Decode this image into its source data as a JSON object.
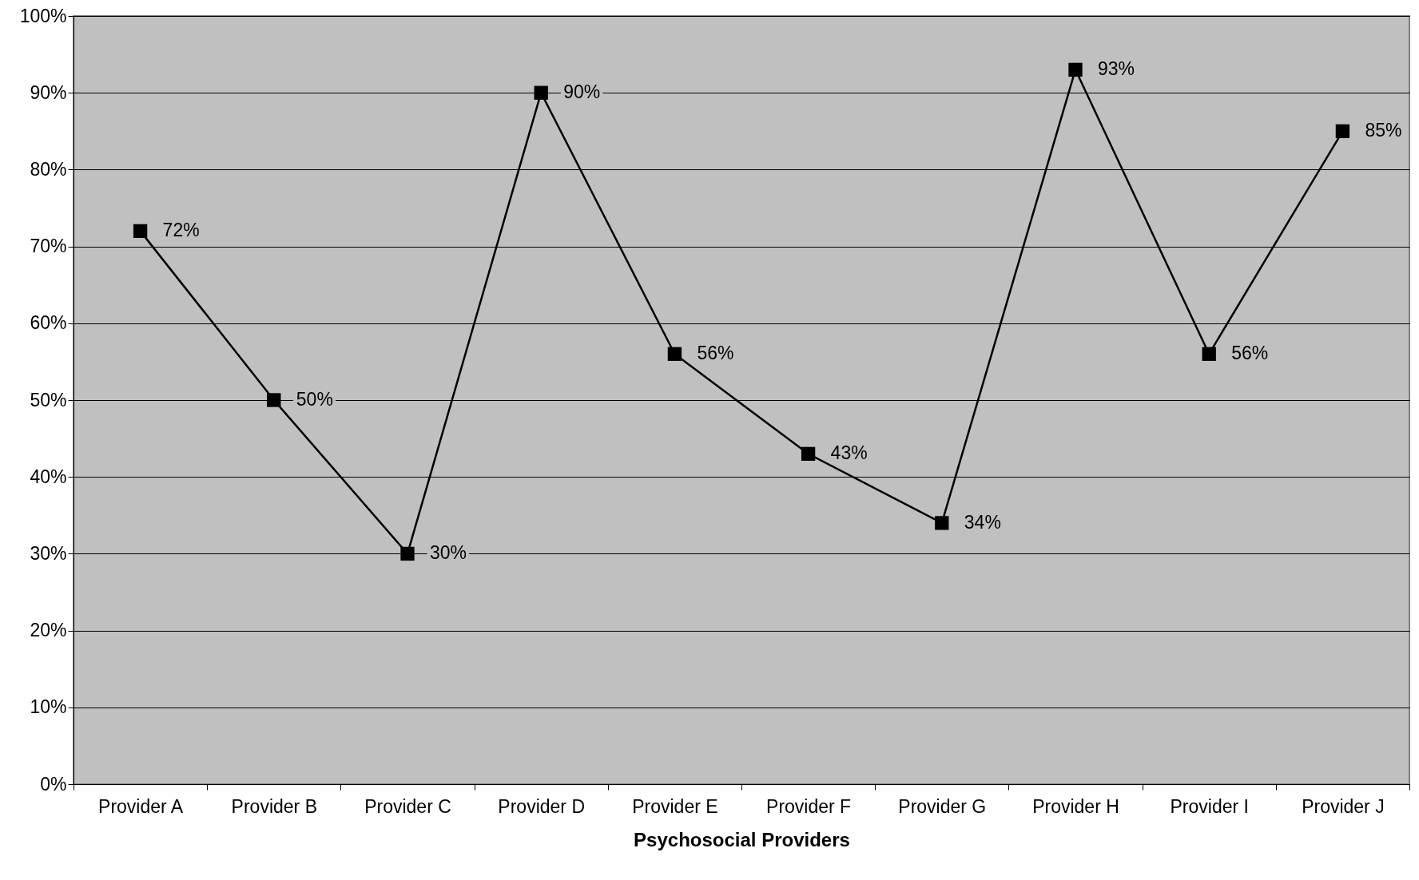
{
  "chart_data": {
    "type": "line",
    "xlabel": "Psychosocial Providers",
    "categories": [
      "Provider A",
      "Provider B",
      "Provider C",
      "Provider D",
      "Provider E",
      "Provider F",
      "Provider G",
      "Provider H",
      "Provider I",
      "Provider J"
    ],
    "values": [
      72,
      50,
      30,
      90,
      56,
      43,
      34,
      93,
      56,
      85
    ],
    "value_labels": [
      "72%",
      "50%",
      "30%",
      "90%",
      "56%",
      "43%",
      "34%",
      "93%",
      "56%",
      "85%"
    ],
    "color": "#000000",
    "ylim": [
      0,
      100
    ],
    "yticks": [
      {
        "value": 0,
        "label": "0%"
      },
      {
        "value": 10,
        "label": "10%"
      },
      {
        "value": 20,
        "label": "20%"
      },
      {
        "value": 30,
        "label": "30%"
      },
      {
        "value": 40,
        "label": "40%"
      },
      {
        "value": 50,
        "label": "50%"
      },
      {
        "value": 60,
        "label": "60%"
      },
      {
        "value": 70,
        "label": "70%"
      },
      {
        "value": 80,
        "label": "80%"
      },
      {
        "value": 90,
        "label": "90%"
      },
      {
        "value": 100,
        "label": "100%"
      }
    ],
    "grid": "y",
    "marker": "square",
    "line_style": "solid"
  }
}
